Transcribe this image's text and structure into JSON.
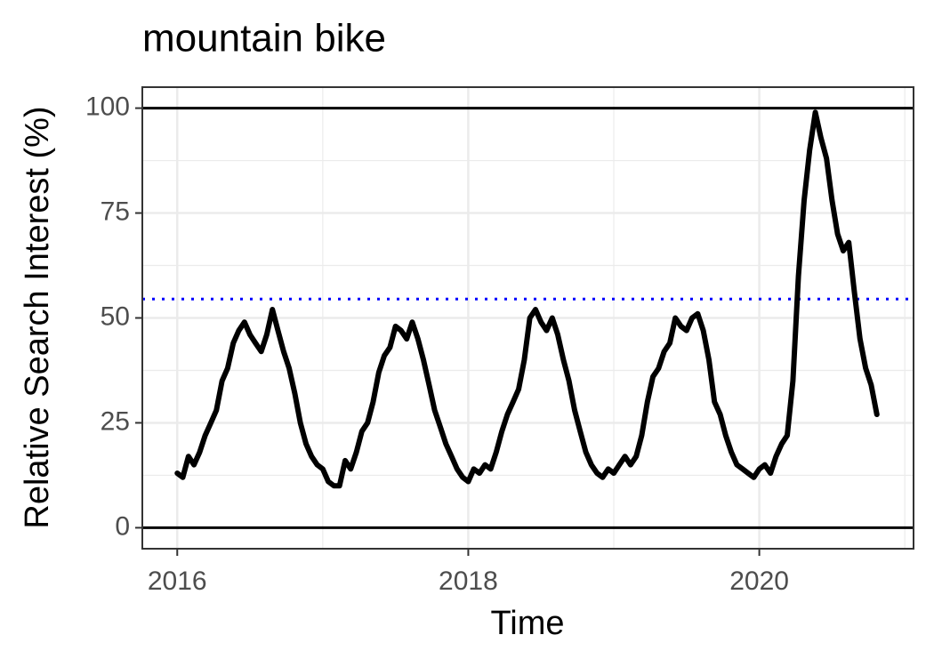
{
  "chart_data": {
    "type": "line",
    "title": "mountain bike",
    "x_label": "Time",
    "y_label": "Relative Search Interest (%)",
    "color": "#000000",
    "x": [
      2016,
      2016.038,
      2016.077,
      2016.115,
      2016.154,
      2016.192,
      2016.231,
      2016.269,
      2016.308,
      2016.346,
      2016.385,
      2016.423,
      2016.462,
      2016.5,
      2016.538,
      2016.577,
      2016.615,
      2016.654,
      2016.692,
      2016.731,
      2016.769,
      2016.808,
      2016.846,
      2016.885,
      2016.923,
      2016.962,
      2017,
      2017.038,
      2017.077,
      2017.115,
      2017.154,
      2017.192,
      2017.231,
      2017.269,
      2017.308,
      2017.346,
      2017.385,
      2017.423,
      2017.462,
      2017.5,
      2017.538,
      2017.577,
      2017.615,
      2017.654,
      2017.692,
      2017.731,
      2017.769,
      2017.808,
      2017.846,
      2017.885,
      2017.923,
      2017.962,
      2018,
      2018.038,
      2018.077,
      2018.115,
      2018.154,
      2018.192,
      2018.231,
      2018.269,
      2018.308,
      2018.346,
      2018.385,
      2018.423,
      2018.462,
      2018.5,
      2018.538,
      2018.577,
      2018.615,
      2018.654,
      2018.692,
      2018.731,
      2018.769,
      2018.808,
      2018.846,
      2018.885,
      2018.923,
      2018.962,
      2019,
      2019.038,
      2019.077,
      2019.115,
      2019.154,
      2019.192,
      2019.231,
      2019.269,
      2019.308,
      2019.346,
      2019.385,
      2019.423,
      2019.462,
      2019.5,
      2019.538,
      2019.577,
      2019.615,
      2019.654,
      2019.692,
      2019.731,
      2019.769,
      2019.808,
      2019.846,
      2019.885,
      2019.923,
      2019.962,
      2020,
      2020.038,
      2020.077,
      2020.115,
      2020.154,
      2020.192,
      2020.231,
      2020.269,
      2020.308,
      2020.346,
      2020.385,
      2020.423,
      2020.462,
      2020.5,
      2020.538,
      2020.577,
      2020.615,
      2020.654,
      2020.692,
      2020.731,
      2020.769,
      2020.808
    ],
    "values": [
      13,
      12,
      17,
      15,
      18,
      22,
      25,
      28,
      35,
      38,
      44,
      47,
      49,
      46,
      44,
      42,
      46,
      52,
      47,
      42,
      38,
      32,
      25,
      20,
      17,
      15,
      14,
      11,
      10,
      10,
      16,
      14,
      18,
      23,
      25,
      30,
      37,
      41,
      43,
      48,
      47,
      45,
      49,
      45,
      40,
      34,
      28,
      24,
      20,
      17,
      14,
      12,
      11,
      14,
      13,
      15,
      14,
      18,
      23,
      27,
      30,
      33,
      40,
      50,
      52,
      49,
      47,
      50,
      46,
      40,
      35,
      28,
      23,
      18,
      15,
      13,
      12,
      14,
      13,
      15,
      17,
      15,
      17,
      22,
      30,
      36,
      38,
      42,
      44,
      50,
      48,
      47,
      50,
      51,
      47,
      40,
      30,
      27,
      22,
      18,
      15,
      14,
      13,
      12,
      14,
      15,
      13,
      17,
      20,
      22,
      35,
      60,
      78,
      90,
      99,
      93,
      88,
      78,
      70,
      66,
      68,
      56,
      45,
      38,
      34,
      27
    ],
    "xlim": [
      2015.76,
      2021.06
    ],
    "xticks": [
      2016,
      2018,
      2020
    ],
    "ylim": [
      -5,
      105
    ],
    "yticks": [
      0,
      25,
      50,
      75,
      100
    ],
    "grid": true,
    "hlines": [
      {
        "value": 0,
        "color": "#000000",
        "style": "solid"
      },
      {
        "value": 100,
        "color": "#000000",
        "style": "solid"
      },
      {
        "value": 54.5,
        "color": "#0000ff",
        "style": "dotted"
      }
    ]
  }
}
